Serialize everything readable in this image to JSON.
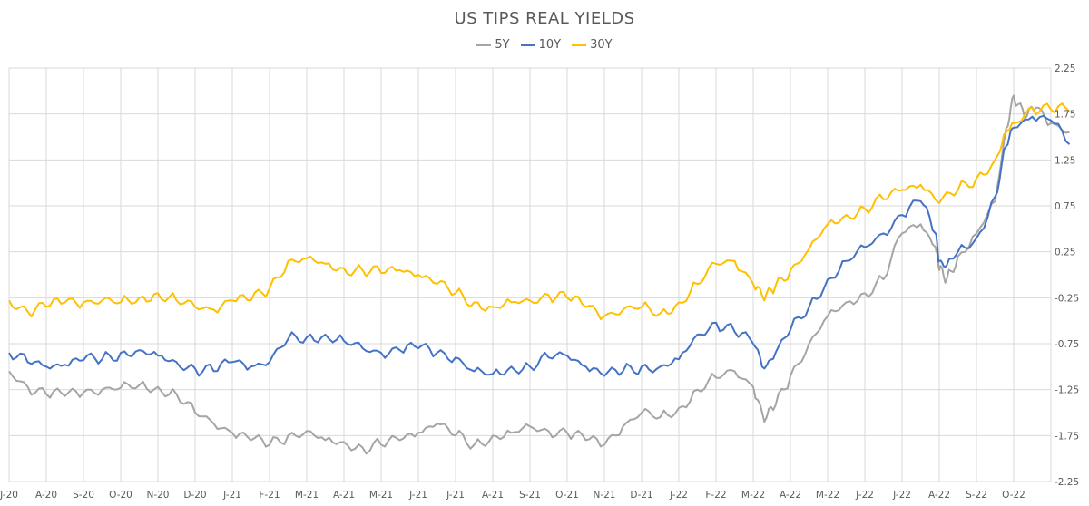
{
  "chart_data": {
    "type": "line",
    "title": "US TIPS REAL YIELDS",
    "xlabel": "",
    "ylabel": "",
    "ylim": [
      -2.25,
      2.25
    ],
    "yticks": [
      "2.25",
      "1.75",
      "1.25",
      "0.75",
      "0.25",
      "-0.25",
      "-0.75",
      "-1.25",
      "-1.75",
      "-2.25"
    ],
    "xticks": [
      "J-20",
      "A-20",
      "S-20",
      "O-20",
      "N-20",
      "D-20",
      "J-21",
      "F-21",
      "M-21",
      "A-21",
      "M-21",
      "J-21",
      "J-21",
      "A-21",
      "S-21",
      "O-21",
      "N-21",
      "D-21",
      "J-22",
      "F-22",
      "M-22",
      "A-22",
      "M-22",
      "J-22",
      "J-22",
      "A-22",
      "S-22",
      "O-22"
    ],
    "grid": true,
    "legend_position": "top-center",
    "series": [
      {
        "name": "5Y",
        "color": "#a5a5a5",
        "values": [
          [
            0,
            -1.05
          ],
          [
            0.5,
            -1.22
          ],
          [
            1.0,
            -1.3
          ],
          [
            1.5,
            -1.32
          ],
          [
            2.0,
            -1.28
          ],
          [
            2.5,
            -1.25
          ],
          [
            3.0,
            -1.23
          ],
          [
            3.5,
            -1.2
          ],
          [
            4.0,
            -1.22
          ],
          [
            4.5,
            -1.3
          ],
          [
            5.0,
            -1.5
          ],
          [
            5.5,
            -1.62
          ],
          [
            6.0,
            -1.72
          ],
          [
            6.5,
            -1.8
          ],
          [
            7.0,
            -1.85
          ],
          [
            7.5,
            -1.75
          ],
          [
            8.0,
            -1.7
          ],
          [
            8.5,
            -1.8
          ],
          [
            9.0,
            -1.82
          ],
          [
            9.5,
            -1.88
          ],
          [
            10.0,
            -1.85
          ],
          [
            10.5,
            -1.8
          ],
          [
            11.0,
            -1.72
          ],
          [
            11.5,
            -1.62
          ],
          [
            12.0,
            -1.75
          ],
          [
            12.5,
            -1.85
          ],
          [
            13.0,
            -1.75
          ],
          [
            13.5,
            -1.72
          ],
          [
            14.0,
            -1.65
          ],
          [
            14.5,
            -1.7
          ],
          [
            15.0,
            -1.72
          ],
          [
            15.5,
            -1.8
          ],
          [
            16.0,
            -1.85
          ],
          [
            16.5,
            -1.65
          ],
          [
            17.0,
            -1.5
          ],
          [
            17.5,
            -1.55
          ],
          [
            18.0,
            -1.45
          ],
          [
            18.5,
            -1.25
          ],
          [
            19.0,
            -1.12
          ],
          [
            19.5,
            -1.05
          ],
          [
            20.0,
            -1.22
          ],
          [
            20.3,
            -1.6
          ],
          [
            20.6,
            -1.42
          ],
          [
            21.0,
            -1.1
          ],
          [
            21.5,
            -0.75
          ],
          [
            22.0,
            -0.45
          ],
          [
            22.5,
            -0.3
          ],
          [
            23.0,
            -0.2
          ],
          [
            23.5,
            -0.05
          ],
          [
            24.0,
            0.45
          ],
          [
            24.5,
            0.55
          ],
          [
            24.9,
            0.3
          ],
          [
            25.0,
            0.05
          ],
          [
            25.2,
            -0.05
          ],
          [
            25.5,
            0.2
          ],
          [
            26.0,
            0.45
          ],
          [
            26.5,
            0.8
          ],
          [
            26.8,
            1.6
          ],
          [
            27.0,
            1.95
          ],
          [
            27.3,
            1.7
          ],
          [
            27.6,
            1.82
          ],
          [
            28.0,
            1.65
          ],
          [
            28.5,
            1.55
          ]
        ]
      },
      {
        "name": "10Y",
        "color": "#4472c4",
        "values": [
          [
            0,
            -0.85
          ],
          [
            0.5,
            -0.95
          ],
          [
            1.0,
            -1.0
          ],
          [
            1.5,
            -0.98
          ],
          [
            2.0,
            -0.93
          ],
          [
            2.5,
            -0.92
          ],
          [
            3.0,
            -0.85
          ],
          [
            3.5,
            -0.82
          ],
          [
            4.0,
            -0.88
          ],
          [
            4.5,
            -0.95
          ],
          [
            5.0,
            -1.02
          ],
          [
            5.5,
            -1.05
          ],
          [
            6.0,
            -0.95
          ],
          [
            6.5,
            -1.0
          ],
          [
            7.0,
            -0.95
          ],
          [
            7.5,
            -0.7
          ],
          [
            8.0,
            -0.68
          ],
          [
            8.5,
            -0.65
          ],
          [
            9.0,
            -0.72
          ],
          [
            9.5,
            -0.8
          ],
          [
            10.0,
            -0.85
          ],
          [
            10.5,
            -0.82
          ],
          [
            11.0,
            -0.8
          ],
          [
            11.5,
            -0.85
          ],
          [
            12.0,
            -0.9
          ],
          [
            12.5,
            -1.05
          ],
          [
            13.0,
            -1.08
          ],
          [
            13.5,
            -1.0
          ],
          [
            14.0,
            -1.0
          ],
          [
            14.5,
            -0.9
          ],
          [
            15.0,
            -0.88
          ],
          [
            15.5,
            -1.0
          ],
          [
            16.0,
            -1.1
          ],
          [
            16.5,
            -1.05
          ],
          [
            17.0,
            -1.0
          ],
          [
            17.5,
            -1.0
          ],
          [
            18.0,
            -0.92
          ],
          [
            18.5,
            -0.65
          ],
          [
            19.0,
            -0.52
          ],
          [
            19.5,
            -0.62
          ],
          [
            20.0,
            -0.75
          ],
          [
            20.3,
            -1.02
          ],
          [
            20.6,
            -0.85
          ],
          [
            21.0,
            -0.6
          ],
          [
            21.5,
            -0.35
          ],
          [
            22.0,
            -0.05
          ],
          [
            22.5,
            0.15
          ],
          [
            23.0,
            0.3
          ],
          [
            23.5,
            0.45
          ],
          [
            24.0,
            0.65
          ],
          [
            24.5,
            0.8
          ],
          [
            24.9,
            0.45
          ],
          [
            25.0,
            0.15
          ],
          [
            25.2,
            0.1
          ],
          [
            25.5,
            0.25
          ],
          [
            26.0,
            0.4
          ],
          [
            26.5,
            0.85
          ],
          [
            26.8,
            1.4
          ],
          [
            27.0,
            1.6
          ],
          [
            27.5,
            1.72
          ],
          [
            28.0,
            1.68
          ],
          [
            28.5,
            1.42
          ]
        ]
      },
      {
        "name": "30Y",
        "color": "#ffc000",
        "values": [
          [
            0,
            -0.28
          ],
          [
            0.5,
            -0.4
          ],
          [
            1.0,
            -0.35
          ],
          [
            1.5,
            -0.3
          ],
          [
            2.0,
            -0.3
          ],
          [
            2.5,
            -0.28
          ],
          [
            3.0,
            -0.3
          ],
          [
            3.5,
            -0.25
          ],
          [
            4.0,
            -0.2
          ],
          [
            4.5,
            -0.28
          ],
          [
            5.0,
            -0.35
          ],
          [
            5.5,
            -0.38
          ],
          [
            6.0,
            -0.28
          ],
          [
            6.5,
            -0.28
          ],
          [
            7.0,
            -0.15
          ],
          [
            7.5,
            0.15
          ],
          [
            8.0,
            0.18
          ],
          [
            8.5,
            0.12
          ],
          [
            9.0,
            0.07
          ],
          [
            9.5,
            0.05
          ],
          [
            10.0,
            0.02
          ],
          [
            10.5,
            0.05
          ],
          [
            11.0,
            0.0
          ],
          [
            11.5,
            -0.1
          ],
          [
            12.0,
            -0.2
          ],
          [
            12.5,
            -0.3
          ],
          [
            13.0,
            -0.35
          ],
          [
            13.5,
            -0.3
          ],
          [
            14.0,
            -0.28
          ],
          [
            14.5,
            -0.22
          ],
          [
            15.0,
            -0.25
          ],
          [
            15.5,
            -0.35
          ],
          [
            16.0,
            -0.45
          ],
          [
            16.5,
            -0.38
          ],
          [
            17.0,
            -0.35
          ],
          [
            17.5,
            -0.42
          ],
          [
            18.0,
            -0.3
          ],
          [
            18.5,
            -0.1
          ],
          [
            19.0,
            0.12
          ],
          [
            19.5,
            0.15
          ],
          [
            20.0,
            -0.1
          ],
          [
            20.3,
            -0.28
          ],
          [
            20.6,
            -0.12
          ],
          [
            21.0,
            0.05
          ],
          [
            21.5,
            0.28
          ],
          [
            22.0,
            0.55
          ],
          [
            22.5,
            0.65
          ],
          [
            23.0,
            0.72
          ],
          [
            23.5,
            0.82
          ],
          [
            24.0,
            0.92
          ],
          [
            24.5,
            0.98
          ],
          [
            25.0,
            0.78
          ],
          [
            25.5,
            0.92
          ],
          [
            26.0,
            1.05
          ],
          [
            26.5,
            1.25
          ],
          [
            26.8,
            1.55
          ],
          [
            27.0,
            1.65
          ],
          [
            27.5,
            1.82
          ],
          [
            28.0,
            1.8
          ],
          [
            28.5,
            1.78
          ]
        ]
      }
    ]
  }
}
